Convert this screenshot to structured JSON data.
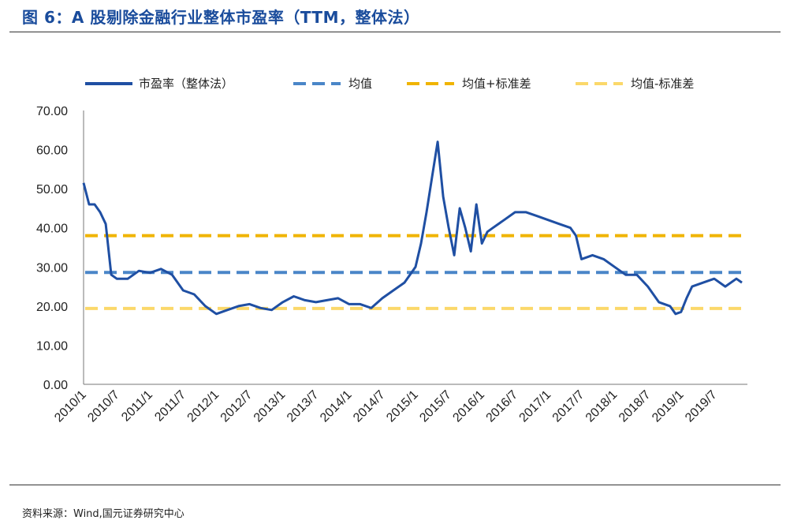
{
  "header": {
    "title": "图 6：A 股剔除金融行业整体市盈率（TTM，整体法）"
  },
  "footer": {
    "source": "资料来源：Wind,国元证券研究中心"
  },
  "colors": {
    "title": "#1a4c9c",
    "pe_series": "#1f4fa3",
    "mean": "#4a86c8",
    "mean_plus_std": "#f0b400",
    "mean_minus_std": "#fbd86a"
  },
  "chart_data": {
    "type": "line",
    "title": "",
    "xlabel": "",
    "ylabel": "",
    "ylim": [
      0,
      70
    ],
    "yticks": [
      "0.00",
      "10.00",
      "20.00",
      "30.00",
      "40.00",
      "50.00",
      "60.00",
      "70.00"
    ],
    "xticks": [
      "2010/1",
      "2010/7",
      "2011/1",
      "2011/7",
      "2012/1",
      "2012/7",
      "2013/1",
      "2013/7",
      "2014/1",
      "2014/7",
      "2015/1",
      "2015/7",
      "2016/1",
      "2016/7",
      "2017/1",
      "2017/7",
      "2018/1",
      "2018/7",
      "2019/1",
      "2019/7"
    ],
    "xlim": [
      "2010/1",
      "2019/12"
    ],
    "legend_position": "top",
    "grid": false,
    "series": [
      {
        "name": "市盈率（整体法）",
        "style": "solid",
        "x": [
          "2010/1",
          "2010/2",
          "2010/3",
          "2010/4",
          "2010/5",
          "2010/6",
          "2010/7",
          "2010/9",
          "2010/11",
          "2011/1",
          "2011/3",
          "2011/5",
          "2011/7",
          "2011/9",
          "2011/11",
          "2012/1",
          "2012/3",
          "2012/5",
          "2012/7",
          "2012/9",
          "2012/11",
          "2013/1",
          "2013/3",
          "2013/5",
          "2013/7",
          "2013/9",
          "2013/11",
          "2014/1",
          "2014/3",
          "2014/5",
          "2014/7",
          "2014/9",
          "2014/11",
          "2015/1",
          "2015/2",
          "2015/3",
          "2015/4",
          "2015/5",
          "2015/6",
          "2015/7",
          "2015/8",
          "2015/9",
          "2015/10",
          "2015/11",
          "2015/12",
          "2016/1",
          "2016/2",
          "2016/3",
          "2016/5",
          "2016/7",
          "2016/9",
          "2016/11",
          "2017/1",
          "2017/3",
          "2017/5",
          "2017/6",
          "2017/7",
          "2017/9",
          "2017/11",
          "2018/1",
          "2018/3",
          "2018/5",
          "2018/7",
          "2018/9",
          "2018/11",
          "2018/12",
          "2019/1",
          "2019/2",
          "2019/3",
          "2019/5",
          "2019/7",
          "2019/9",
          "2019/11",
          "2019/12"
        ],
        "values": [
          51.5,
          46,
          46,
          44,
          41,
          28,
          27,
          27,
          29,
          28.5,
          29.5,
          28,
          24,
          23,
          20,
          18,
          19,
          20,
          20.5,
          19.5,
          19,
          21,
          22.5,
          21.5,
          21,
          21.5,
          22,
          20.5,
          20.5,
          19.5,
          22,
          24,
          26,
          30,
          36,
          44,
          53,
          62,
          48,
          40,
          33,
          45,
          40,
          34,
          46,
          36,
          39,
          40,
          42,
          44,
          44,
          43,
          42,
          41,
          40,
          38,
          32,
          33,
          32,
          30,
          28,
          28,
          25,
          21,
          20,
          18,
          18.5,
          22,
          25,
          26,
          27,
          25,
          27,
          26
        ]
      },
      {
        "name": "均值",
        "style": "dashed",
        "value": 28.6
      },
      {
        "name": "均值+标准差",
        "style": "dashed",
        "value": 38.0
      },
      {
        "name": "均值-标准差",
        "style": "dashed",
        "value": 19.4
      }
    ]
  }
}
